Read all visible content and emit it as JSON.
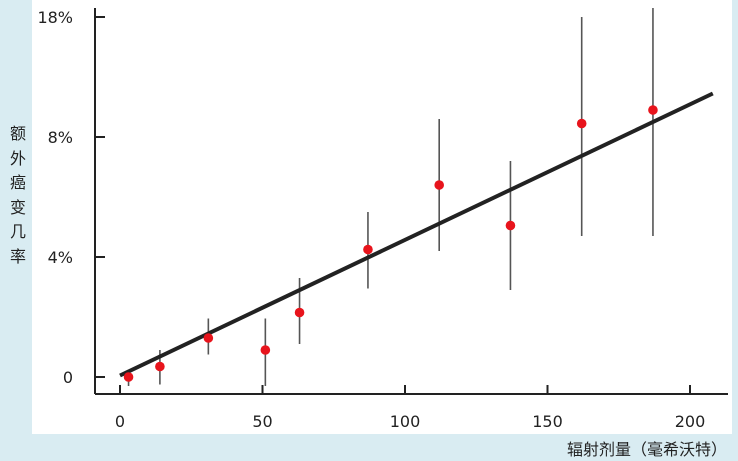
{
  "chart_data": {
    "type": "scatter",
    "title": "",
    "xlabel": "辐射剂量（毫希沃特）",
    "ylabel": "额外癌变几率",
    "x_ticks": [
      0,
      50,
      100,
      150,
      200
    ],
    "x_tick_labels": [
      "0",
      "50",
      "100",
      "150",
      "200"
    ],
    "y_ticks": [
      0,
      4,
      8,
      18
    ],
    "y_tick_labels": [
      "0",
      "4%",
      "8%",
      "18%"
    ],
    "y_scale": "broken axis: 0–8% linear, jump to 18% at top",
    "xlim": [
      -8,
      210
    ],
    "grid": false,
    "legend": "none",
    "points_color": "#e8141c",
    "line_color": "#222222",
    "points": [
      {
        "x": 3,
        "y": 0.0,
        "err_low": -0.3,
        "err_high": 0.2
      },
      {
        "x": 14,
        "y": 0.35,
        "err_low": -0.25,
        "err_high": 0.9
      },
      {
        "x": 31,
        "y": 1.3,
        "err_low": 0.75,
        "err_high": 1.95
      },
      {
        "x": 51,
        "y": 0.9,
        "err_low": -0.3,
        "err_high": 1.95
      },
      {
        "x": 63,
        "y": 2.15,
        "err_low": 1.1,
        "err_high": 3.3
      },
      {
        "x": 87,
        "y": 4.25,
        "err_low": 2.95,
        "err_high": 5.5
      },
      {
        "x": 112,
        "y": 6.4,
        "err_low": 4.2,
        "err_high": 8.6
      },
      {
        "x": 137,
        "y": 5.05,
        "err_low": 2.9,
        "err_high": 7.2
      },
      {
        "x": 162,
        "y": 8.45,
        "err_low": 4.7,
        "err_high": 12.0
      },
      {
        "x": 187,
        "y": 8.9,
        "err_low": 4.7,
        "err_high": 15.0
      }
    ],
    "fit_line": {
      "x": [
        0,
        208
      ],
      "y": [
        0.05,
        9.45
      ]
    }
  }
}
